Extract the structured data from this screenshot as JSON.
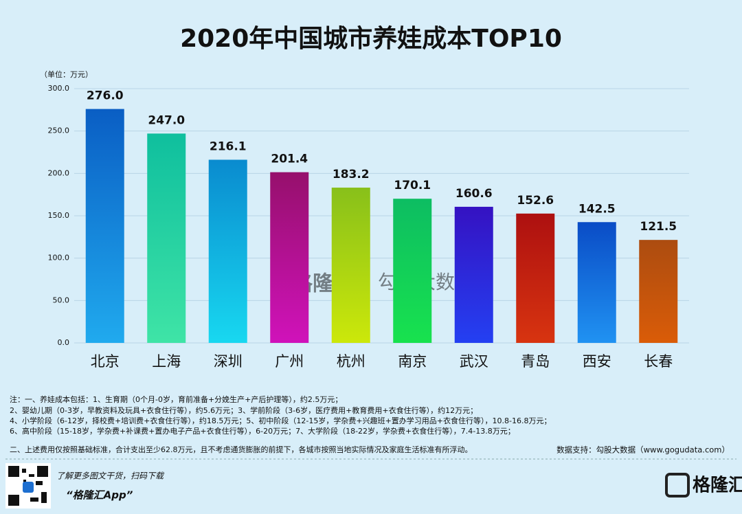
{
  "chart_data": {
    "type": "bar",
    "title": "2020年中国城市养娃成本TOP10",
    "y_label": "（单位：万元）",
    "categories": [
      "北京",
      "上海",
      "深圳",
      "广州",
      "杭州",
      "南京",
      "武汉",
      "青岛",
      "西安",
      "长春"
    ],
    "values": [
      276.0,
      247.0,
      216.1,
      201.4,
      183.2,
      170.1,
      160.6,
      152.6,
      142.5,
      121.5
    ],
    "value_labels": [
      "276.0",
      "247.0",
      "216.1",
      "201.4",
      "183.2",
      "170.1",
      "160.6",
      "152.6",
      "142.5",
      "121.5"
    ],
    "colors": [
      [
        "#0a5ec4",
        "#20aaee"
      ],
      [
        "#0fbf9e",
        "#3fe4a6"
      ],
      [
        "#0a8bcf",
        "#18d8f0"
      ],
      [
        "#96106c",
        "#d012ba"
      ],
      [
        "#88c01a",
        "#cce80a"
      ],
      [
        "#0dbd62",
        "#18e24e"
      ],
      [
        "#3512c2",
        "#2440f2"
      ],
      [
        "#ad1010",
        "#d83410"
      ],
      [
        "#0a4cc6",
        "#2092f2"
      ],
      [
        "#ac4c10",
        "#da5c08"
      ]
    ],
    "ylim": [
      0,
      300
    ],
    "yticks": [
      {
        "value": 0,
        "label": "0.0"
      },
      {
        "value": 50,
        "label": "50.0"
      },
      {
        "value": 100,
        "label": "100.0"
      },
      {
        "value": 150,
        "label": "150.0"
      },
      {
        "value": 200,
        "label": "200.0"
      },
      {
        "value": 250,
        "label": "250.0"
      },
      {
        "value": 300,
        "label": "300.0"
      }
    ],
    "grid": true
  },
  "watermark": {
    "left": "格隆汇",
    "right": "勾股大数据"
  },
  "notes": [
    "注：一、养娃成本包括：1、生育期（0个月-0岁，育前准备+分娩生产+产后护理等），约2.5万元；",
    "2、婴幼儿期（0-3岁，早教资料及玩具+衣食住行等），约5.6万元；3、学前阶段（3-6岁，医疗费用+教育费用+衣食住行等），约12万元；",
    "4、小学阶段（6-12岁，择校费+培训费+衣食住行等），约18.5万元；5、初中阶段（12-15岁，学杂费+兴趣班+置办学习用品+衣食住行等），10.8-16.8万元；",
    "6、高中阶段（15-18岁，学杂费+补课费+置办电子产品+衣食住行等），6-20万元；7、大学阶段（18-22岁，学杂费+衣食住行等），7.4-13.8万元；",
    "二、上述费用仅按照基础标准，合计支出至少62.8万元，且不考虑通货膨胀的前提下，各城市按照当地实际情况及家庭生活标准有所浮动。"
  ],
  "source": "数据支持：勾股大数据（www.gogudata.com）",
  "footer": {
    "prompt": "了解更多图文干货，扫码下载",
    "app": "“格隆汇App”",
    "logo": "格隆汇"
  }
}
